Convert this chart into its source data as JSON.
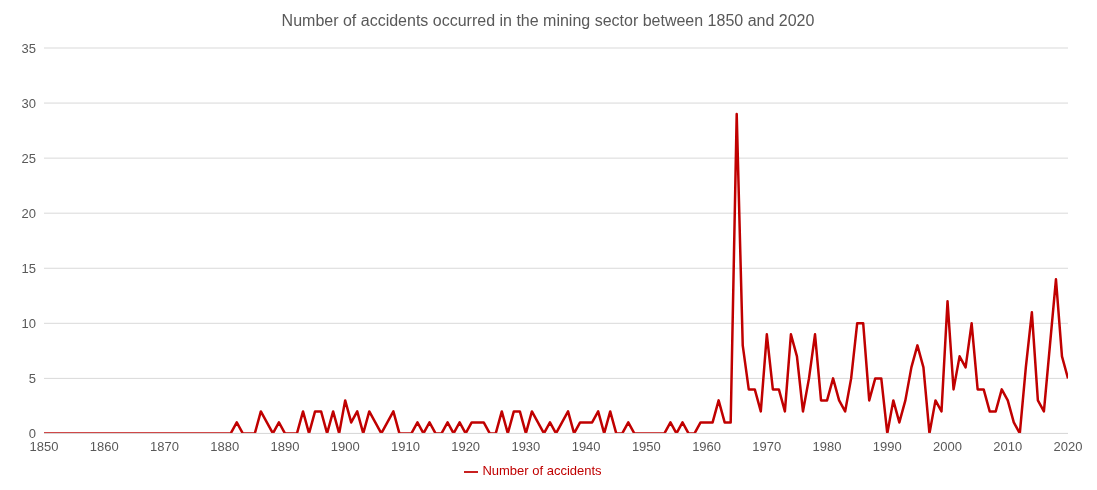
{
  "chart_data": {
    "type": "line",
    "title": "Number of accidents occurred in the mining sector between 1850 and 2020",
    "x": [
      1850,
      1851,
      1852,
      1853,
      1854,
      1855,
      1856,
      1857,
      1858,
      1859,
      1860,
      1861,
      1862,
      1863,
      1864,
      1865,
      1866,
      1867,
      1868,
      1869,
      1870,
      1871,
      1872,
      1873,
      1874,
      1875,
      1876,
      1877,
      1878,
      1879,
      1880,
      1881,
      1882,
      1883,
      1884,
      1885,
      1886,
      1887,
      1888,
      1889,
      1890,
      1891,
      1892,
      1893,
      1894,
      1895,
      1896,
      1897,
      1898,
      1899,
      1900,
      1901,
      1902,
      1903,
      1904,
      1905,
      1906,
      1907,
      1908,
      1909,
      1910,
      1911,
      1912,
      1913,
      1914,
      1915,
      1916,
      1917,
      1918,
      1919,
      1920,
      1921,
      1922,
      1923,
      1924,
      1925,
      1926,
      1927,
      1928,
      1929,
      1930,
      1931,
      1932,
      1933,
      1934,
      1935,
      1936,
      1937,
      1938,
      1939,
      1940,
      1941,
      1942,
      1943,
      1944,
      1945,
      1946,
      1947,
      1948,
      1949,
      1950,
      1951,
      1952,
      1953,
      1954,
      1955,
      1956,
      1957,
      1958,
      1959,
      1960,
      1961,
      1962,
      1963,
      1964,
      1965,
      1966,
      1967,
      1968,
      1969,
      1970,
      1971,
      1972,
      1973,
      1974,
      1975,
      1976,
      1977,
      1978,
      1979,
      1980,
      1981,
      1982,
      1983,
      1984,
      1985,
      1986,
      1987,
      1988,
      1989,
      1990,
      1991,
      1992,
      1993,
      1994,
      1995,
      1996,
      1997,
      1998,
      1999,
      2000,
      2001,
      2002,
      2003,
      2004,
      2005,
      2006,
      2007,
      2008,
      2009,
      2010,
      2011,
      2012,
      2013,
      2014,
      2015,
      2016,
      2017,
      2018,
      2019,
      2020
    ],
    "series": [
      {
        "name": "Number of accidents",
        "color": "#c00000",
        "values": [
          0,
          0,
          0,
          0,
          0,
          0,
          0,
          0,
          0,
          0,
          0,
          0,
          0,
          0,
          0,
          0,
          0,
          0,
          0,
          0,
          0,
          0,
          0,
          0,
          0,
          0,
          0,
          0,
          0,
          0,
          0,
          0,
          1,
          0,
          0,
          0,
          2,
          1,
          0,
          1,
          0,
          0,
          0,
          2,
          0,
          2,
          2,
          0,
          2,
          0,
          3,
          1,
          2,
          0,
          2,
          1,
          0,
          1,
          2,
          0,
          0,
          0,
          1,
          0,
          1,
          0,
          0,
          1,
          0,
          1,
          0,
          1,
          1,
          1,
          0,
          0,
          2,
          0,
          2,
          2,
          0,
          2,
          1,
          0,
          1,
          0,
          1,
          2,
          0,
          1,
          1,
          1,
          2,
          0,
          2,
          0,
          0,
          1,
          0,
          0,
          0,
          0,
          0,
          0,
          1,
          0,
          1,
          0,
          0,
          1,
          1,
          1,
          3,
          1,
          1,
          29,
          8,
          4,
          4,
          2,
          9,
          4,
          4,
          2,
          9,
          7,
          2,
          5,
          9,
          3,
          3,
          5,
          3,
          2,
          5,
          10,
          10,
          3,
          5,
          5,
          0,
          3,
          1,
          3,
          6,
          8,
          6,
          0,
          3,
          2,
          12,
          4,
          7,
          6,
          10,
          4,
          4,
          2,
          2,
          4,
          3,
          1,
          0,
          6,
          11,
          3,
          2,
          8,
          14,
          7,
          5
        ]
      }
    ],
    "xlim": [
      1850,
      2020
    ],
    "xticks": [
      1850,
      1860,
      1870,
      1880,
      1890,
      1900,
      1910,
      1920,
      1930,
      1940,
      1950,
      1960,
      1970,
      1980,
      1990,
      2000,
      2010,
      2020
    ],
    "ylim": [
      0,
      35
    ],
    "yticks": [
      0,
      5,
      10,
      15,
      20,
      25,
      30,
      35
    ],
    "grid": "y",
    "legend": "bottom",
    "marker": "none",
    "line_style": "solid"
  }
}
